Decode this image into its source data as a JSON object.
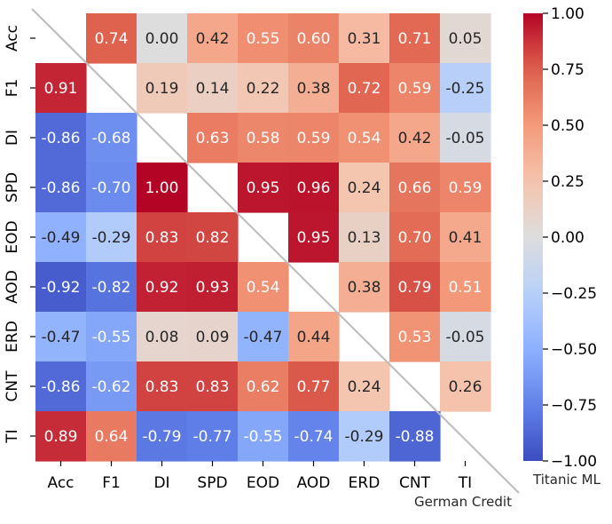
{
  "chart_data": {
    "type": "heatmap",
    "labels": [
      "Acc",
      "F1",
      "DI",
      "SPD",
      "EOD",
      "AOD",
      "ERD",
      "CNT",
      "TI"
    ],
    "values": [
      [
        null,
        0.74,
        0.0,
        0.42,
        0.55,
        0.6,
        0.31,
        0.71,
        0.05
      ],
      [
        0.91,
        null,
        0.19,
        0.14,
        0.22,
        0.38,
        0.72,
        0.59,
        -0.25
      ],
      [
        -0.86,
        -0.68,
        null,
        0.63,
        0.58,
        0.59,
        0.54,
        0.42,
        -0.05
      ],
      [
        -0.86,
        -0.7,
        1.0,
        null,
        0.95,
        0.96,
        0.24,
        0.66,
        0.59
      ],
      [
        -0.49,
        -0.29,
        0.83,
        0.82,
        null,
        0.95,
        0.13,
        0.7,
        0.41
      ],
      [
        -0.92,
        -0.82,
        0.92,
        0.93,
        0.54,
        null,
        0.38,
        0.79,
        0.51
      ],
      [
        -0.47,
        -0.55,
        0.08,
        0.09,
        -0.47,
        0.44,
        null,
        0.53,
        -0.05
      ],
      [
        -0.86,
        -0.62,
        0.83,
        0.83,
        0.62,
        0.77,
        0.24,
        null,
        0.26
      ],
      [
        0.89,
        0.64,
        -0.79,
        -0.77,
        -0.55,
        -0.74,
        -0.29,
        -0.88,
        null
      ]
    ],
    "upper_triangle_dataset": "Titanic ML",
    "lower_triangle_dataset": "German Credit",
    "colormap": "coolwarm",
    "vmin": -1.0,
    "vmax": 1.0,
    "colorbar_ticks": [
      "1.00",
      "0.75",
      "0.50",
      "0.25",
      "0.00",
      "−0.25",
      "−0.50",
      "−0.75",
      "−1.00"
    ],
    "colorbar_tick_values": [
      1.0,
      0.75,
      0.5,
      0.25,
      0.0,
      -0.25,
      -0.5,
      -0.75,
      -1.0
    ]
  },
  "colors": {
    "cold": "#3b4cc0",
    "neutral": "#dddddd",
    "warm": "#b40426",
    "diagonal_line": "#bbbbbb",
    "text_dark": "#262626",
    "text_light": "#ffffff"
  }
}
